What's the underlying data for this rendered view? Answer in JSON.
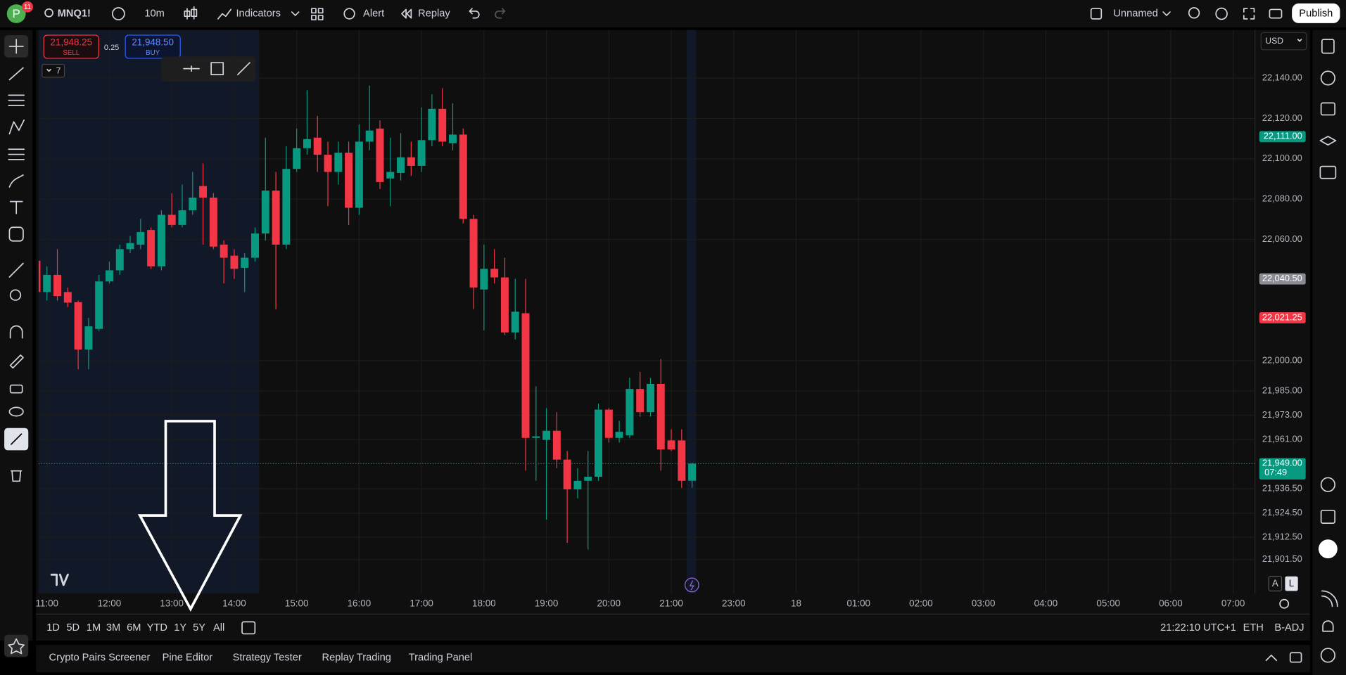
{
  "topbar": {
    "avatar": "P",
    "badge": "11",
    "symbol": "MNQ1!",
    "interval": "10m",
    "indicators": "Indicators",
    "alert": "Alert",
    "replay": "Replay",
    "layout": "Unnamed",
    "publish": "Publish"
  },
  "order_panel": {
    "sell_price": "21,948.25",
    "sell": "SELL",
    "spread": "0.25",
    "buy_price": "21,948.50",
    "buy": "BUY",
    "quantity": "7"
  },
  "currency": "USD",
  "chart_data": {
    "type": "candlestick",
    "open": [
      22049.5,
      22034,
      22042.5,
      22034,
      22029,
      22005.5,
      22015.75,
      22039.25,
      22044.75,
      22055.25,
      22057.5,
      22064.75,
      22046.75,
      22072.25,
      22067.25,
      22074.5,
      22086.5,
      22080.75,
      22057.5,
      22052,
      22046,
      22051,
      22063,
      22084.25,
      22057.5,
      22095,
      22105.25,
      22110.5,
      22102,
      22093.5,
      22103,
      22075.75,
      22108.5,
      22115,
      22090.25,
      22093,
      22100.75,
      22096.5,
      22109.25,
      22124.75,
      22107.75,
      22112,
      22070.25,
      22035.25,
      22045.5,
      22041.25,
      22014,
      22023.5,
      21961.75,
      21960.75,
      21965.25,
      21951,
      21936.25,
      21940.5,
      21942.5,
      21975.75,
      21961.75,
      21963,
      21986,
      21974.5,
      21988.5,
      21960.5,
      21960.5,
      21940.5
    ],
    "high": [
      22053.5,
      22046.75,
      22055.25,
      22036.25,
      22029.75,
      22021.25,
      22042.5,
      22049,
      22057.5,
      22061.75,
      22070.25,
      22066,
      22074.5,
      22083,
      22087.25,
      22093.5,
      22097.75,
      22083,
      22059.5,
      22055.25,
      22053.25,
      22066,
      22110.5,
      22093.5,
      22106.25,
      22115,
      22134,
      22121.25,
      22108.5,
      22108.5,
      22108.5,
      22117,
      22136.25,
      22119,
      22110.5,
      22112.75,
      22108.5,
      22125.5,
      22132,
      22135,
      22127.5,
      22115,
      22072.25,
      22057.5,
      22055.25,
      22051,
      22040.5,
      22040.5,
      21987.25,
      21976.5,
      21974.5,
      21955.25,
      21946.75,
      21955.25,
      21978.75,
      21976.5,
      21970.25,
      21991.5,
      21994.5,
      21991.5,
      22000.75,
      21966,
      21966,
      21949.5
    ],
    "low": [
      22027.5,
      22029.75,
      22029.75,
      22026.5,
      21995.75,
      21995.75,
      22014.75,
      22038.25,
      22042.5,
      22053.25,
      22055.25,
      22045.5,
      22044.75,
      22066,
      22066,
      22072.25,
      22057.5,
      22055.25,
      22038.25,
      22040.5,
      22034,
      22049,
      22059.5,
      22025.5,
      22055.25,
      22093.5,
      22102,
      22093.5,
      22076.5,
      22087.25,
      22067.25,
      22072.25,
      22104.25,
      22085,
      22076.5,
      22089.25,
      22091.5,
      22093.5,
      22106.25,
      22106.25,
      22104.25,
      22068,
      22025.5,
      22015,
      22038.25,
      22012.75,
      22010.5,
      21945.5,
      21940.5,
      21921.25,
      21946.75,
      21909.75,
      21931.75,
      21906.5,
      21940.5,
      21959.5,
      21959.5,
      21961.75,
      21972.25,
      21972.25,
      21945.5,
      21955.25,
      21937,
      21937
    ],
    "close": [
      22034,
      22042.5,
      22032,
      22028.75,
      22005.5,
      22017,
      22039.25,
      22044.75,
      22055.25,
      22058.25,
      22063.75,
      22046.75,
      22072.25,
      22067.25,
      22074.5,
      22080.75,
      22080.75,
      22056.5,
      22051,
      22045.5,
      22051,
      22063,
      22084.25,
      22057.5,
      22095,
      22105.25,
      22109.75,
      22102,
      22093.5,
      22103,
      22075.75,
      22108.5,
      22114,
      22088.5,
      22093.5,
      22100.75,
      22096.5,
      22109.25,
      22124.75,
      22108.5,
      22112,
      22070.25,
      22036.25,
      22045.5,
      22041.25,
      22014,
      22024.25,
      21961.75,
      21962.5,
      21965.25,
      21951,
      21936.25,
      21940.5,
      21942.5,
      21975.75,
      21961.75,
      21964.75,
      21986,
      21974.5,
      21988.5,
      21956,
      21956,
      21940.5,
      21949
    ],
    "up_color": "#089981",
    "down_color": "#f23645",
    "ylim": [
      21885.5,
      22163.8
    ],
    "yticks": [
      {
        "value": 22140,
        "label": "22,140.00"
      },
      {
        "value": 22120,
        "label": "22,120.00"
      },
      {
        "value": 22100,
        "label": "22,100.00"
      },
      {
        "value": 22080,
        "label": "22,080.00"
      },
      {
        "value": 22060,
        "label": "22,060.00"
      },
      {
        "value": 22000,
        "label": "22,000.00"
      },
      {
        "value": 21985,
        "label": "21,985.00"
      },
      {
        "value": 21973,
        "label": "21,973.00"
      },
      {
        "value": 21961,
        "label": "21,961.00"
      },
      {
        "value": 21936.5,
        "label": "21,936.50"
      },
      {
        "value": 21924.5,
        "label": "21,924.50"
      },
      {
        "value": 21912.5,
        "label": "21,912.50"
      },
      {
        "value": 21901.5,
        "label": "21,901.50"
      }
    ],
    "xlim": [
      0.2,
      117.1
    ],
    "xticks": [
      {
        "value": 1,
        "label": "11:00"
      },
      {
        "value": 7,
        "label": "12:00"
      },
      {
        "value": 13,
        "label": "13:00"
      },
      {
        "value": 19,
        "label": "14:00"
      },
      {
        "value": 25,
        "label": "15:00"
      },
      {
        "value": 31,
        "label": "16:00"
      },
      {
        "value": 37,
        "label": "17:00"
      },
      {
        "value": 43,
        "label": "18:00"
      },
      {
        "value": 49,
        "label": "19:00"
      },
      {
        "value": 55,
        "label": "20:00"
      },
      {
        "value": 61,
        "label": "21:00"
      },
      {
        "value": 67,
        "label": "23:00"
      },
      {
        "value": 73,
        "label": "18"
      },
      {
        "value": 79,
        "label": "01:00"
      },
      {
        "value": 85,
        "label": "02:00"
      },
      {
        "value": 91,
        "label": "03:00"
      },
      {
        "value": 97,
        "label": "04:00"
      },
      {
        "value": 103,
        "label": "05:00"
      },
      {
        "value": 109,
        "label": "06:00"
      },
      {
        "value": 115,
        "label": "07:00"
      }
    ],
    "grid": true,
    "price_labels": [
      {
        "value": 22111,
        "label": "22,111.00",
        "color": "#089981"
      },
      {
        "value": 22040.5,
        "label": "22,040.50",
        "color": "#8a8d96"
      },
      {
        "value": 22021.25,
        "label": "22,021.25",
        "color": "#f23645"
      },
      {
        "value": 21949,
        "label": "21,949.00",
        "color": "#089981"
      }
    ],
    "countdown": "07:49"
  },
  "scale_buttons": [
    "A",
    "L"
  ],
  "ranges": [
    "1D",
    "5D",
    "1M",
    "3M",
    "6M",
    "YTD",
    "1Y",
    "5Y",
    "All"
  ],
  "status": {
    "time": "21:22:10 UTC+1",
    "session": "ETH",
    "adjustment": "B-ADJ"
  },
  "tabs": [
    "Crypto Pairs Screener",
    "Pine Editor",
    "Strategy Tester",
    "Replay Trading",
    "Trading Panel"
  ]
}
